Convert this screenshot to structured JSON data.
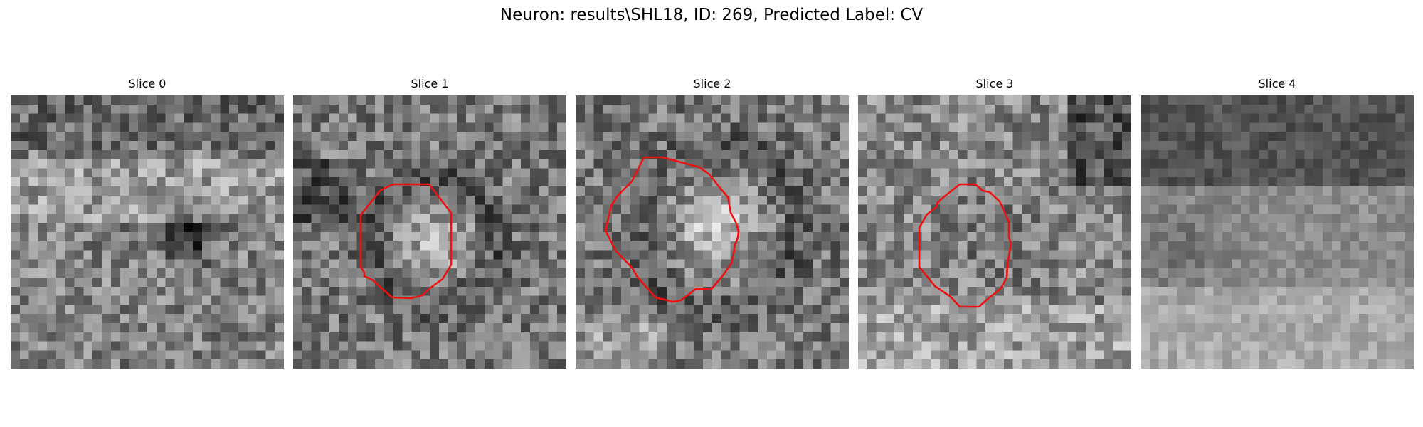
{
  "figure": {
    "title": "Neuron: results\\SHL18, ID: 269, Predicted Label: CV"
  },
  "slices": [
    {
      "label": "Slice 0",
      "has_contour": false,
      "brightness": "mid",
      "seed": 11
    },
    {
      "label": "Slice 1",
      "has_contour": true,
      "brightness": "mid",
      "seed": 23
    },
    {
      "label": "Slice 2",
      "has_contour": true,
      "brightness": "mid",
      "seed": 37
    },
    {
      "label": "Slice 3",
      "has_contour": true,
      "brightness": "mid",
      "seed": 41
    },
    {
      "label": "Slice 4",
      "has_contour": false,
      "brightness": "mid",
      "seed": 59
    }
  ],
  "colors": {
    "contour": "#ee1111",
    "background": "#ffffff"
  },
  "grid_cells": 30
}
